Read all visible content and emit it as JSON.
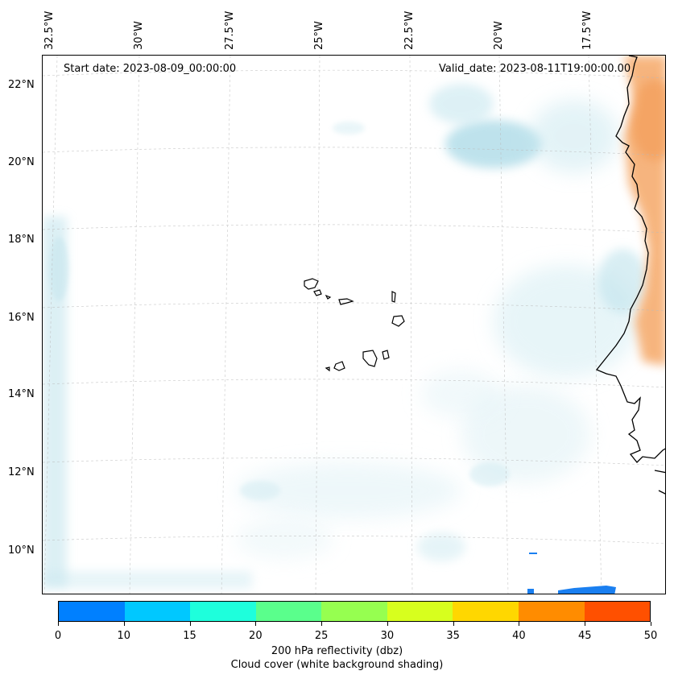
{
  "map": {
    "start_label": "Start date: 2023-08-09_00:00:00",
    "valid_label": "Valid_date: 2023-08-11T19:00:00.00",
    "lon_labels": [
      "32.5°W",
      "30°W",
      "27.5°W",
      "25°W",
      "22.5°W",
      "20°W",
      "17.5°W"
    ],
    "lat_labels": [
      "22°N",
      "20°N",
      "18°N",
      "16°N",
      "14°N",
      "12°N",
      "10°N"
    ],
    "features": {
      "islands": "Cape Verde",
      "coastline": "West Africa",
      "cloud_shading": "light blue",
      "land_reflectivity": "orange"
    }
  },
  "colorbar": {
    "colors": [
      "#0080ff",
      "#00c8ff",
      "#1effdc",
      "#5aff8c",
      "#96ff50",
      "#d7ff1e",
      "#ffd700",
      "#ff8c00",
      "#ff5000"
    ],
    "ticks": [
      "0",
      "10",
      "15",
      "20",
      "25",
      "30",
      "35",
      "40",
      "45",
      "50"
    ],
    "label": "200 hPa reflectivity (dbz)",
    "sublabel": "Cloud cover (white background shading)"
  }
}
